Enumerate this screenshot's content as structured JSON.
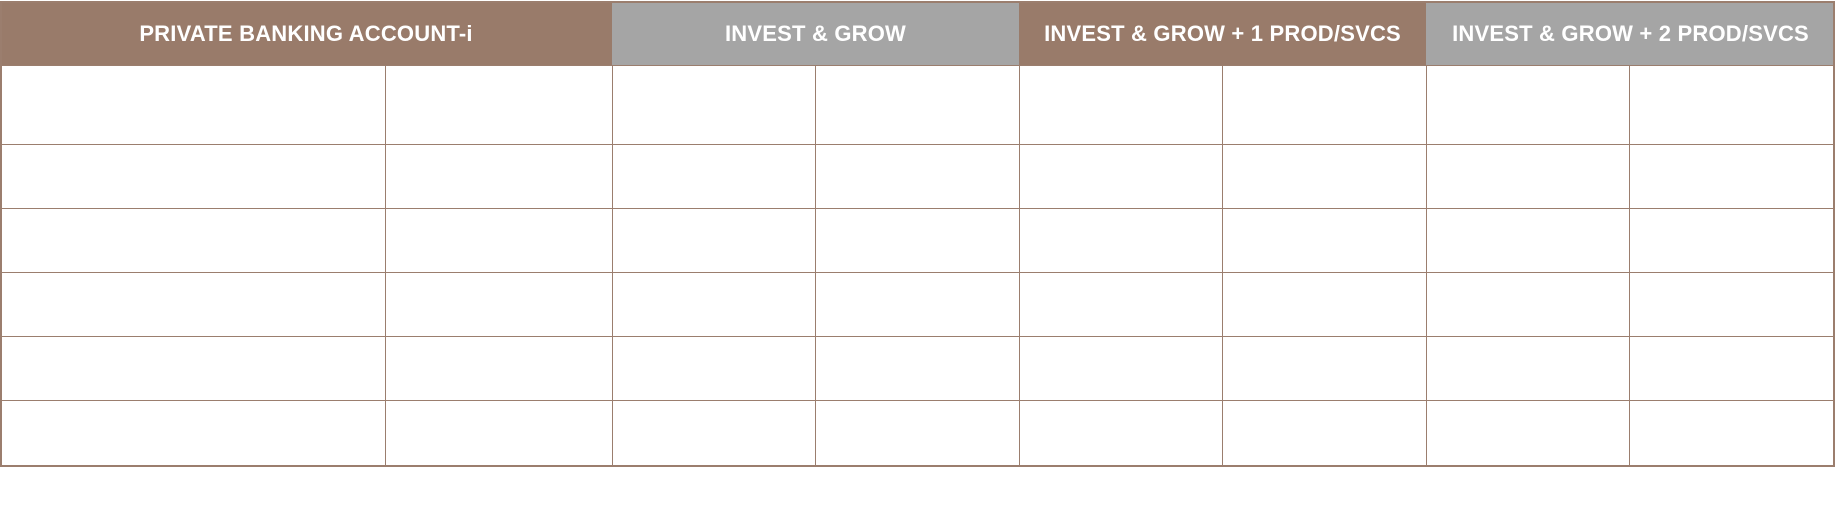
{
  "table": {
    "headers": [
      {
        "label": "PRIVATE BANKING ACCOUNT-i",
        "style": "brown"
      },
      {
        "label": "INVEST & GROW",
        "style": "grey"
      },
      {
        "label": "INVEST & GROW + 1 PROD/SVCS",
        "style": "brown"
      },
      {
        "label": "INVEST & GROW + 2 PROD/SVCS",
        "style": "grey"
      }
    ],
    "rows": [
      [
        "",
        "",
        "",
        "",
        "",
        "",
        "",
        ""
      ],
      [
        "",
        "",
        "",
        "",
        "",
        "",
        "",
        ""
      ],
      [
        "",
        "",
        "",
        "",
        "",
        "",
        "",
        ""
      ],
      [
        "",
        "",
        "",
        "",
        "",
        "",
        "",
        ""
      ],
      [
        "",
        "",
        "",
        "",
        "",
        "",
        "",
        ""
      ],
      [
        "",
        "",
        "",
        "",
        "",
        "",
        "",
        ""
      ]
    ]
  },
  "colors": {
    "brown": "#997b6a",
    "grey": "#a5a5a5",
    "border": "#9b7e6e",
    "header_text": "#ffffff"
  }
}
